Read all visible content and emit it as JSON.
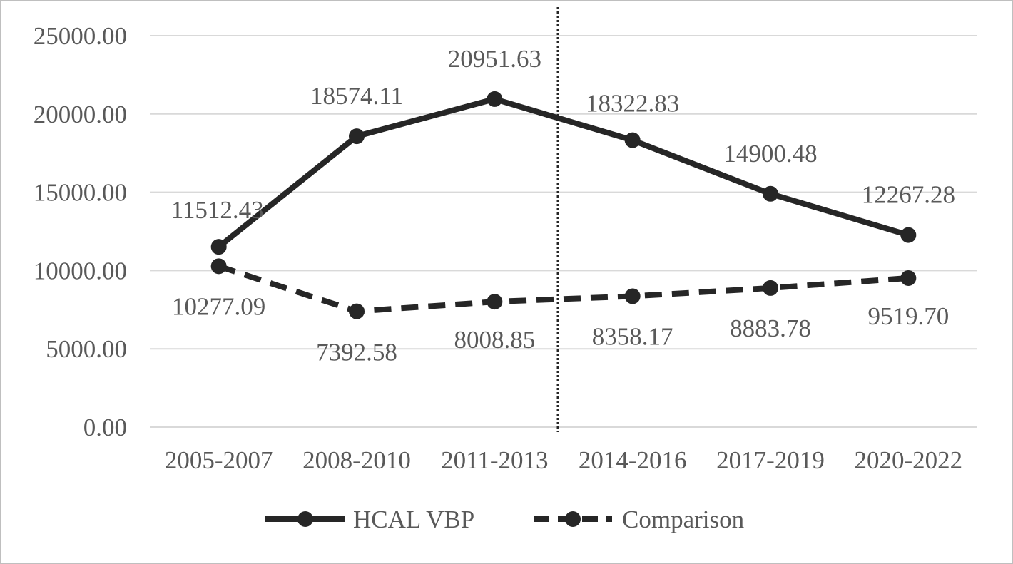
{
  "chart_data": {
    "type": "line",
    "categories": [
      "2005-2007",
      "2008-2010",
      "2011-2013",
      "2014-2016",
      "2017-2019",
      "2020-2022"
    ],
    "series": [
      {
        "name": "HCAL VBP",
        "values": [
          11512.43,
          18574.11,
          20951.63,
          18322.83,
          14900.48,
          12267.28
        ],
        "labels": [
          "11512.43",
          "18574.11",
          "20951.63",
          "18322.83",
          "14900.48",
          "12267.28"
        ],
        "style": "solid"
      },
      {
        "name": "Comparison",
        "values": [
          10277.09,
          7392.58,
          8008.85,
          8358.17,
          8883.78,
          9519.7
        ],
        "labels": [
          "10277.09",
          "7392.58",
          "8008.85",
          "8358.17",
          "8883.78",
          "9519.70"
        ],
        "style": "dashed"
      }
    ],
    "y_ticks": [
      "0.00",
      "5000.00",
      "10000.00",
      "15000.00",
      "20000.00",
      "25000.00"
    ],
    "ylim": [
      0,
      25000
    ],
    "grid": true,
    "vertical_reference_line": "between 2011-2013 and 2014-2016",
    "legend_position": "bottom",
    "colors": {
      "line": "#262626",
      "grid": "#d9d9d9",
      "text": "#595959",
      "border": "#bfbfbf"
    }
  }
}
